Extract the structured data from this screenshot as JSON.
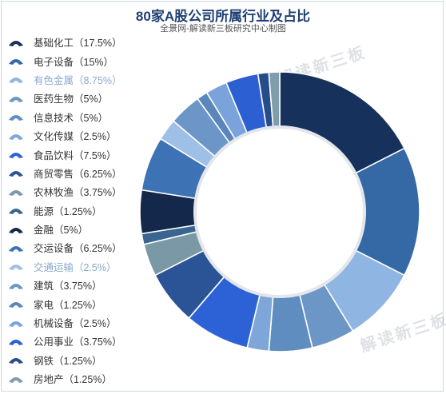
{
  "title": "80家A股公司所属行业及占比",
  "subtitle": "全景网-解读新三板研究中心制图",
  "watermark_text": "解读新三板",
  "chart_data": {
    "type": "pie",
    "style": "donut",
    "legend_position": "left",
    "total_companies": 80,
    "slices": [
      {
        "name": "基础化工",
        "value": 17.5,
        "label": "基础化工（17.5%）",
        "color": "#16325c"
      },
      {
        "name": "电子设备",
        "value": 15,
        "label": "电子设备（15%）",
        "color": "#3469a6"
      },
      {
        "name": "有色金属",
        "value": 8.75,
        "label": "有色金属（8.75%）",
        "color": "#8fb5e3"
      },
      {
        "name": "医药生物",
        "value": 5,
        "label": "医药生物（5%）",
        "color": "#6b96c6"
      },
      {
        "name": "信息技术",
        "value": 5,
        "label": "信息技术（5%）",
        "color": "#5f8dc0"
      },
      {
        "name": "文化传媒",
        "value": 2.5,
        "label": "文化传媒（2.5%）",
        "color": "#7ea6d8"
      },
      {
        "name": "食品饮料",
        "value": 7.5,
        "label": "食品饮料（7.5%）",
        "color": "#2d62d6"
      },
      {
        "name": "商贸零售",
        "value": 6.25,
        "label": "商贸零售（6.25%）",
        "color": "#2b5496"
      },
      {
        "name": "农林牧渔",
        "value": 3.75,
        "label": "农林牧渔（3.75%）",
        "color": "#7b98a6"
      },
      {
        "name": "能源",
        "value": 1.25,
        "label": "能源（1.25%）",
        "color": "#3a6590"
      },
      {
        "name": "金融",
        "value": 5,
        "label": "金融（5%）",
        "color": "#13284a"
      },
      {
        "name": "交运设备",
        "value": 6.25,
        "label": "交运设备（6.25%）",
        "color": "#3d72b4"
      },
      {
        "name": "交通运输",
        "value": 2.5,
        "label": "交通运输（2.5%）",
        "color": "#9fc0e6"
      },
      {
        "name": "建筑",
        "value": 3.75,
        "label": "建筑（3.75%）",
        "color": "#6b96c7"
      },
      {
        "name": "家电",
        "value": 1.25,
        "label": "家电（1.25%）",
        "color": "#5a86bb"
      },
      {
        "name": "机械设备",
        "value": 2.5,
        "label": "机械设备（2.5%）",
        "color": "#7aa3db"
      },
      {
        "name": "公用事业",
        "value": 3.75,
        "label": "公用事业（3.75%）",
        "color": "#2c5fd2"
      },
      {
        "name": "钢铁",
        "value": 1.25,
        "label": "钢铁（1.25%）",
        "color": "#264c8a"
      },
      {
        "name": "房地产",
        "value": 1.25,
        "label": "房地产（1.25%）",
        "color": "#7f9eab"
      }
    ]
  }
}
